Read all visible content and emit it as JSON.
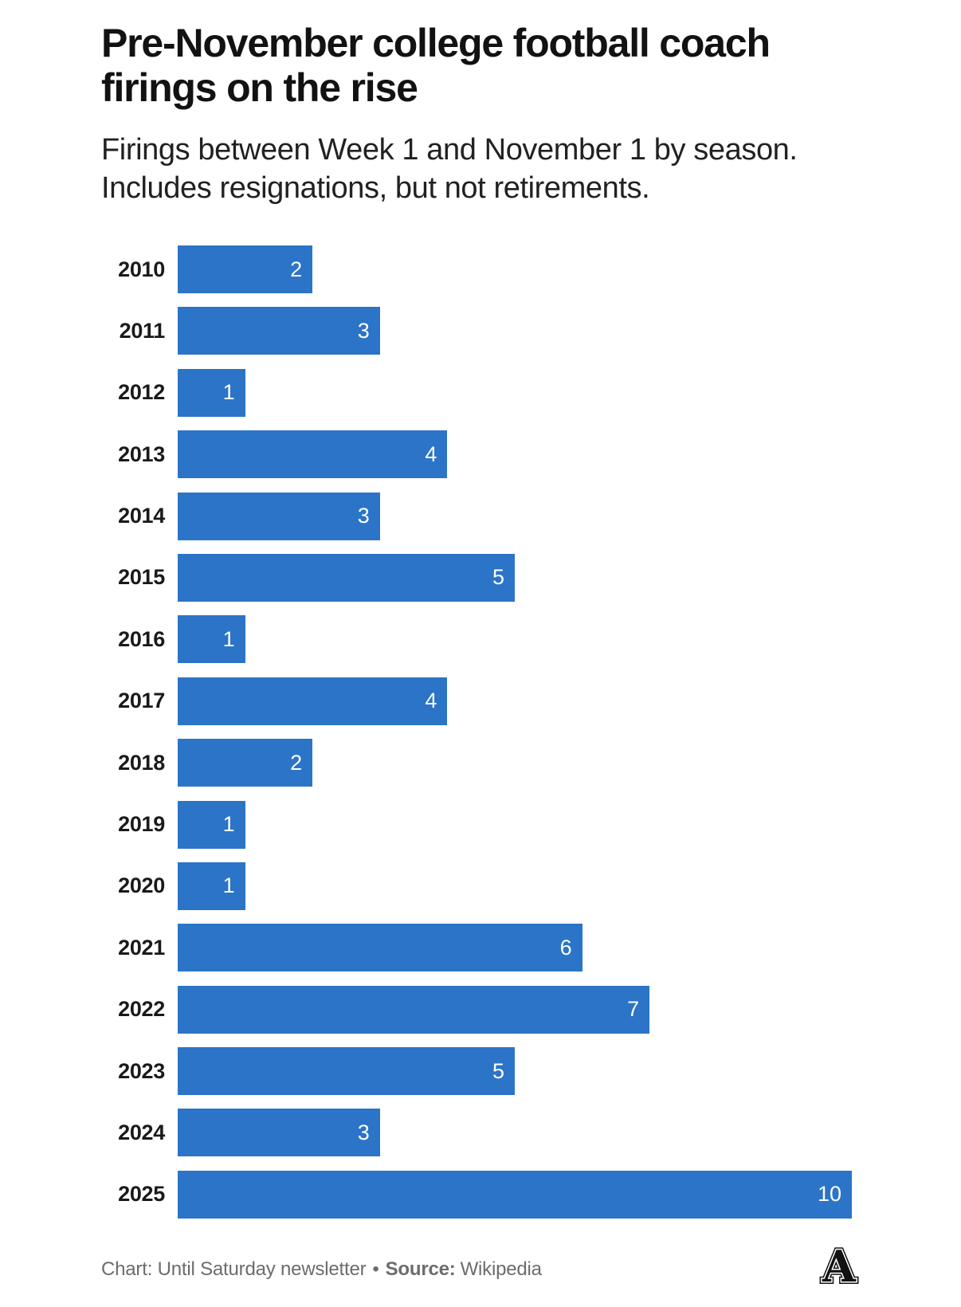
{
  "header": {
    "title_lines": [
      "Pre-November college football coach",
      "firings on the rise"
    ],
    "subtitle_lines": [
      "Firings between Week 1 and November 1 by season.",
      "Includes resignations, but not retirements."
    ]
  },
  "chart_data": {
    "type": "bar",
    "orientation": "horizontal",
    "title": "Pre-November college football coach firings on the rise",
    "subtitle": "Firings between Week 1 and November 1 by season. Includes resignations, but not retirements.",
    "categories": [
      "2010",
      "2011",
      "2012",
      "2013",
      "2014",
      "2015",
      "2016",
      "2017",
      "2018",
      "2019",
      "2020",
      "2021",
      "2022",
      "2023",
      "2024",
      "2025"
    ],
    "values": [
      2,
      3,
      1,
      4,
      3,
      5,
      1,
      4,
      2,
      1,
      1,
      6,
      7,
      5,
      3,
      10
    ],
    "xlabel": "",
    "ylabel": "",
    "xlim": [
      0,
      10
    ],
    "grid": false,
    "legend": "none",
    "value_labels": "inside-end",
    "bar_color": "#2b74c7",
    "value_label_color": "#ffffff",
    "category_label_color": "#1a1a1a"
  },
  "footer": {
    "chart_credit": "Chart: Until Saturday newsletter",
    "separator": "•",
    "source_label": "Source:",
    "source_value": "Wikipedia",
    "logo_letter": "A"
  }
}
